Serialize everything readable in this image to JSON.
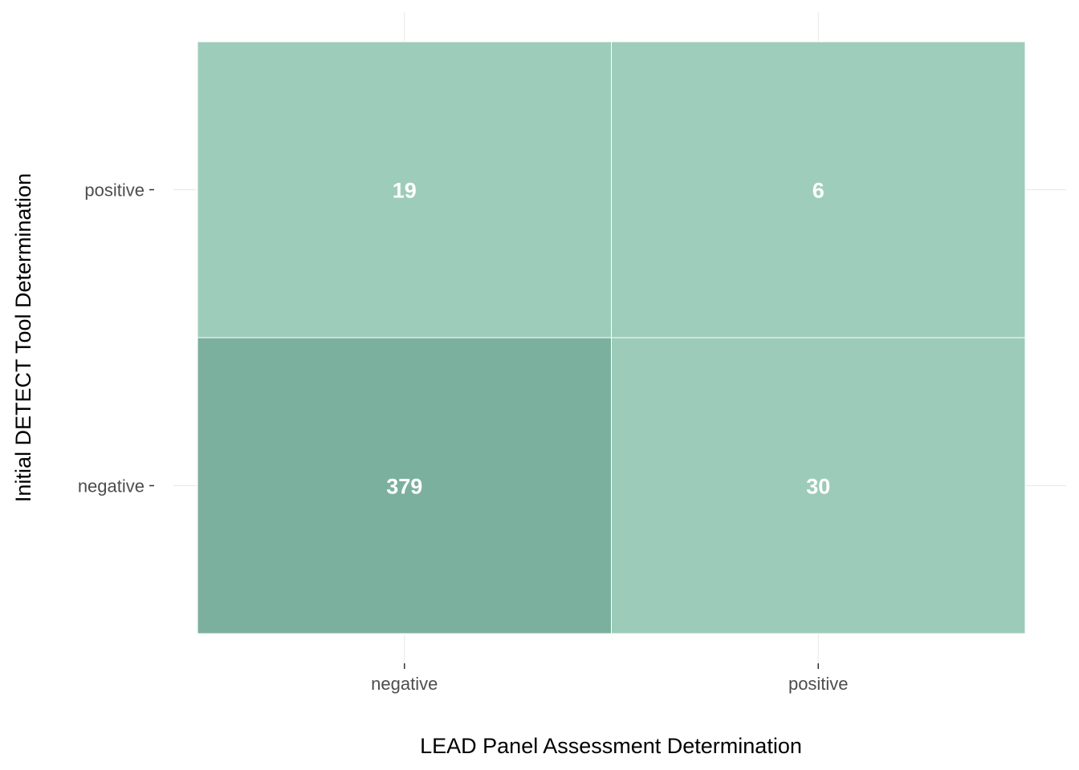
{
  "chart_data": {
    "type": "heatmap",
    "title": "",
    "xlabel": "LEAD Panel Assessment Determination",
    "ylabel": "Initial DETECT Tool Determination",
    "x_categories": [
      "negative",
      "positive"
    ],
    "y_categories": [
      "negative",
      "positive"
    ],
    "cells": [
      {
        "x": "negative",
        "y": "positive",
        "value": 19,
        "label": "19"
      },
      {
        "x": "positive",
        "y": "positive",
        "value": 6,
        "label": "6"
      },
      {
        "x": "negative",
        "y": "negative",
        "value": 379,
        "label": "379"
      },
      {
        "x": "positive",
        "y": "negative",
        "value": 30,
        "label": "30"
      }
    ],
    "colors": {
      "low": "#9ecdbb",
      "high": "#7bb09f",
      "cell_text": "#ffffff",
      "grid": "#ebebeb",
      "tile_border": "#ffffff"
    },
    "grid": true,
    "legend": "none"
  }
}
